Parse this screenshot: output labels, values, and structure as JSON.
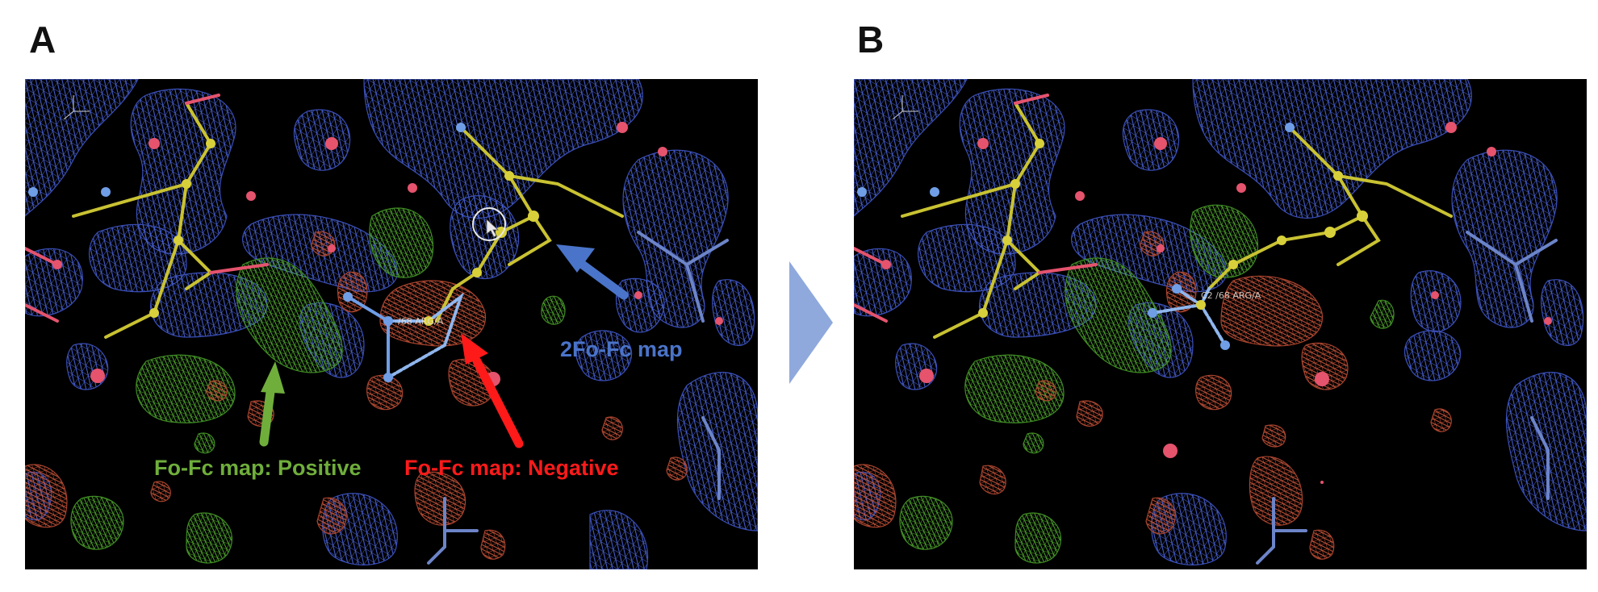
{
  "panels": [
    {
      "letter": "A",
      "residue_label": "/68 ARG/A"
    },
    {
      "letter": "B",
      "residue_label": "C2 /68 ARG/A"
    }
  ],
  "annotations": {
    "map_2fofc": {
      "text": "2Fo-Fc map",
      "color": "#4a74c9"
    },
    "fofc_positive": {
      "text": "Fo-Fc map: Positive",
      "color": "#6fae3b"
    },
    "fofc_negative": {
      "text": "Fo-Fc map: Negative",
      "color": "#ff1a1a"
    }
  },
  "colors": {
    "mesh_blue": "#4a63d8",
    "mesh_green": "#4fa52e",
    "mesh_red": "#c9553a",
    "carbon": "#c9c232",
    "nitrogen": "#6f9ee6",
    "oxygen": "#e5536d",
    "transition_arrow": "#8fa9dc"
  },
  "icons": {
    "transition": "right-chevron-arrow",
    "pointer": "mouse-cursor-icon"
  }
}
